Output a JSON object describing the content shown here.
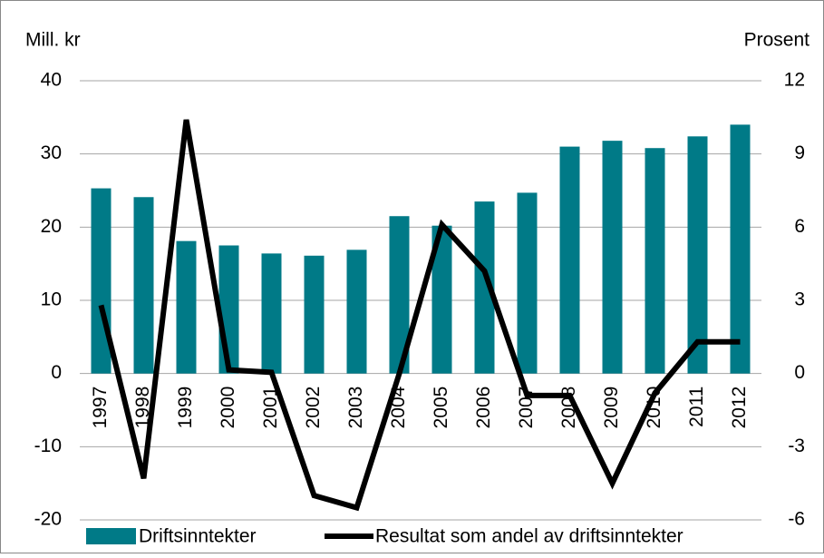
{
  "chart_data": {
    "type": "bar",
    "y_label": "Mill. kr",
    "y2_label": "Prosent",
    "categories": [
      "1997",
      "1998",
      "1999",
      "2000",
      "2001",
      "2002",
      "2003",
      "2004",
      "2005",
      "2006",
      "2007",
      "2008",
      "2009",
      "2010",
      "2011",
      "2012"
    ],
    "series": [
      {
        "name": "Driftsinntekter",
        "color": "#007a87",
        "type": "bar",
        "values": [
          25.3,
          24.1,
          18.1,
          17.5,
          16.4,
          16.1,
          16.9,
          21.5,
          20.2,
          23.5,
          24.7,
          31.0,
          31.8,
          30.8,
          32.4,
          34.0
        ]
      },
      {
        "name": "Resultat som andel av driftsinntekter",
        "color": "#000000",
        "type": "line",
        "axis": "y2",
        "values": [
          2.8,
          -4.3,
          10.4,
          0.15,
          0.05,
          -5.0,
          -5.5,
          0,
          6.1,
          4.2,
          -0.9,
          -0.9,
          -4.5,
          -0.8,
          1.3,
          1.3
        ]
      }
    ],
    "ylim": [
      -20,
      40
    ],
    "yticks": [
      -20,
      -10,
      0,
      10,
      20,
      30,
      40
    ],
    "y2lim": [
      -6,
      12
    ],
    "y2ticks": [
      -6,
      -3,
      0,
      3,
      6,
      9,
      12
    ],
    "grid": true,
    "legend": "bottom"
  }
}
